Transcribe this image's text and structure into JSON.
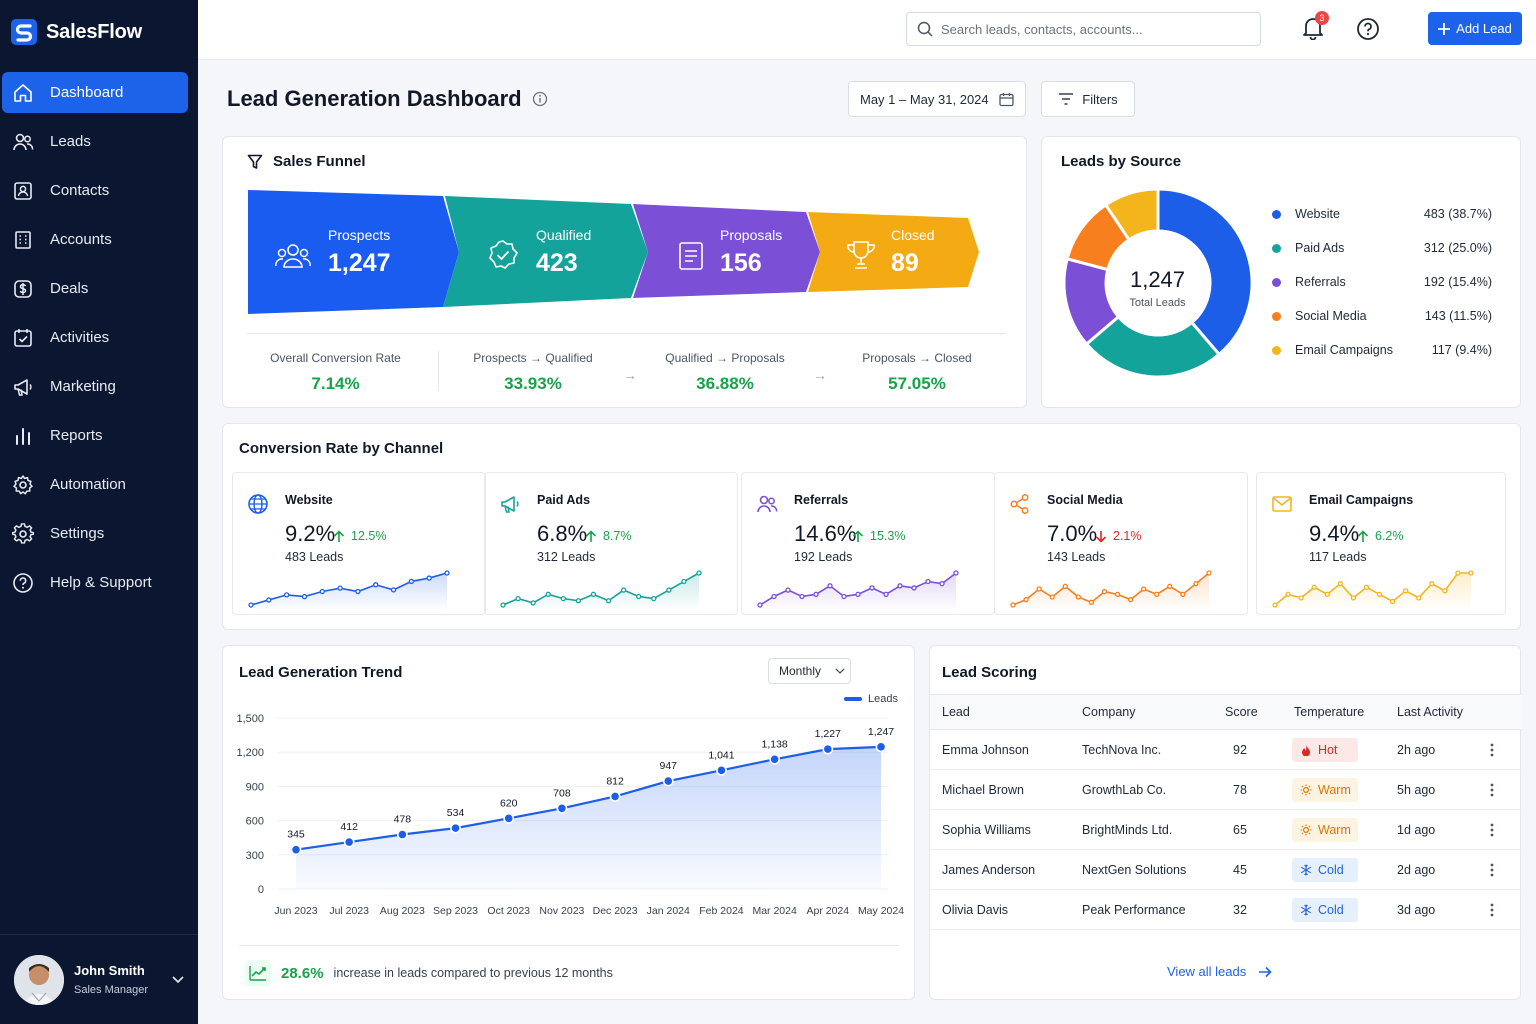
{
  "app": {
    "name": "SalesFlow"
  },
  "sidebar": {
    "items": [
      {
        "label": "Dashboard",
        "icon": "home-icon",
        "active": true
      },
      {
        "label": "Leads",
        "icon": "users-icon"
      },
      {
        "label": "Contacts",
        "icon": "contact-card-icon"
      },
      {
        "label": "Accounts",
        "icon": "building-icon"
      },
      {
        "label": "Deals",
        "icon": "dollar-icon"
      },
      {
        "label": "Activities",
        "icon": "calendar-check-icon"
      },
      {
        "label": "Marketing",
        "icon": "megaphone-icon"
      },
      {
        "label": "Reports",
        "icon": "bar-chart-icon"
      },
      {
        "label": "Automation",
        "icon": "gear-icon"
      },
      {
        "label": "Settings",
        "icon": "settings-icon"
      },
      {
        "label": "Help & Support",
        "icon": "help-icon"
      }
    ],
    "user": {
      "name": "John Smith",
      "role": "Sales Manager"
    }
  },
  "topbar": {
    "search_placeholder": "Search leads, contacts, accounts...",
    "notification_count": "3",
    "add_lead_label": "Add Lead",
    "accent": "#1d63ea"
  },
  "header": {
    "title": "Lead Generation Dashboard",
    "date_range": "May 1 – May 31, 2024",
    "filters_label": "Filters"
  },
  "funnel": {
    "title": "Sales Funnel",
    "stages": [
      {
        "label": "Prospects",
        "value": "1,247",
        "color": "#1a5cf0"
      },
      {
        "label": "Qualified",
        "value": "423",
        "color": "#14a39a"
      },
      {
        "label": "Proposals",
        "value": "156",
        "color": "#7b4fd6"
      },
      {
        "label": "Closed",
        "value": "89",
        "color": "#f4aa12"
      }
    ],
    "metrics": [
      {
        "label": "Overall Conversion Rate",
        "value": "7.14%"
      },
      {
        "label": "Prospects → Qualified",
        "value": "33.93%"
      },
      {
        "label": "Qualified → Proposals",
        "value": "36.88%"
      },
      {
        "label": "Proposals → Closed",
        "value": "57.05%"
      }
    ]
  },
  "sources": {
    "title": "Leads by Source",
    "total_value": "1,247",
    "total_label": "Total Leads",
    "items": [
      {
        "name": "Website",
        "value": 483,
        "display": "483 (38.7%)",
        "color": "#1d5ee8"
      },
      {
        "name": "Paid Ads",
        "value": 312,
        "display": "312 (25.0%)",
        "color": "#14a39a"
      },
      {
        "name": "Referrals",
        "value": 192,
        "display": "192 (15.4%)",
        "color": "#7b4fd6"
      },
      {
        "name": "Social Media",
        "value": 143,
        "display": "143 (11.5%)",
        "color": "#f77f1e"
      },
      {
        "name": "Email Campaigns",
        "value": 117,
        "display": "117 (9.4%)",
        "color": "#f4b51c"
      }
    ]
  },
  "channels": {
    "title": "Conversion Rate by Channel",
    "items": [
      {
        "name": "Website",
        "rate": "9.2%",
        "delta": "12.5%",
        "trend": "up",
        "leads": "483 Leads",
        "color": "#1d5ee8",
        "icon": "globe-icon",
        "spark": [
          3,
          6,
          9,
          8,
          11,
          13,
          11,
          15,
          12,
          17,
          19,
          22
        ]
      },
      {
        "name": "Paid Ads",
        "rate": "6.8%",
        "delta": "8.7%",
        "trend": "up",
        "leads": "312 Leads",
        "color": "#14a39a",
        "icon": "megaphone-icon",
        "spark": [
          5,
          8,
          6,
          10,
          8,
          7,
          10,
          7,
          12,
          9,
          8,
          12,
          16,
          20
        ]
      },
      {
        "name": "Referrals",
        "rate": "14.6%",
        "delta": "15.3%",
        "trend": "up",
        "leads": "192 Leads",
        "color": "#7b4fd6",
        "icon": "users-icon",
        "spark": [
          4,
          8,
          11,
          8,
          9,
          13,
          8,
          9,
          12,
          9,
          13,
          12,
          15,
          14,
          19
        ]
      },
      {
        "name": "Social Media",
        "rate": "7.0%",
        "delta": "2.1%",
        "trend": "down",
        "leads": "143 Leads",
        "color": "#f77f1e",
        "icon": "share-icon",
        "spark": [
          5,
          7,
          11,
          8,
          12,
          8,
          6,
          10,
          9,
          7,
          11,
          9,
          12,
          9,
          13,
          17
        ]
      },
      {
        "name": "Email Campaigns",
        "rate": "9.4%",
        "delta": "6.2%",
        "trend": "up",
        "leads": "117 Leads",
        "color": "#f4b51c",
        "icon": "mail-icon",
        "spark": [
          6,
          9,
          8,
          11,
          9,
          12,
          8,
          11,
          9,
          7,
          10,
          8,
          12,
          10,
          15,
          15
        ]
      }
    ]
  },
  "trend": {
    "title": "Lead Generation Trend",
    "period": "Monthly",
    "footer_pct": "28.6%",
    "footer_text": "increase in leads compared to previous 12 months",
    "chart_data": {
      "type": "area",
      "categories": [
        "Jun 2023",
        "Jul 2023",
        "Aug 2023",
        "Sep 2023",
        "Oct 2023",
        "Nov 2023",
        "Dec 2023",
        "Jan 2024",
        "Feb 2024",
        "Mar 2024",
        "Apr 2024",
        "May 2024"
      ],
      "series": [
        {
          "name": "Leads",
          "values": [
            345,
            412,
            478,
            534,
            620,
            708,
            812,
            947,
            1041,
            1138,
            1227,
            1247
          ]
        }
      ],
      "ylim": [
        0,
        1500
      ],
      "yticks": [
        0,
        300,
        600,
        900,
        1200,
        1500
      ],
      "ytick_labels": [
        "0",
        "300",
        "600",
        "900",
        "1,200",
        "1,500"
      ],
      "value_labels": [
        "345",
        "412",
        "478",
        "534",
        "620",
        "708",
        "812",
        "947",
        "1,041",
        "1,138",
        "1,227",
        "1,247"
      ],
      "legend": "top-right",
      "color": "#1d5ee8"
    }
  },
  "scoring": {
    "title": "Lead Scoring",
    "columns": [
      "Lead",
      "Company",
      "Score",
      "Temperature",
      "Last Activity"
    ],
    "rows": [
      {
        "lead": "Emma Johnson",
        "company": "TechNova Inc.",
        "score": "92",
        "temp": "Hot",
        "temp_type": "hot",
        "last": "2h ago"
      },
      {
        "lead": "Michael Brown",
        "company": "GrowthLab Co.",
        "score": "78",
        "temp": "Warm",
        "temp_type": "warm",
        "last": "5h ago"
      },
      {
        "lead": "Sophia Williams",
        "company": "BrightMinds Ltd.",
        "score": "65",
        "temp": "Warm",
        "temp_type": "warm",
        "last": "1d ago"
      },
      {
        "lead": "James Anderson",
        "company": "NextGen Solutions",
        "score": "45",
        "temp": "Cold",
        "temp_type": "cold",
        "last": "2d ago"
      },
      {
        "lead": "Olivia Davis",
        "company": "Peak Performance",
        "score": "32",
        "temp": "Cold",
        "temp_type": "cold",
        "last": "3d ago"
      }
    ],
    "view_all": "View all leads"
  }
}
